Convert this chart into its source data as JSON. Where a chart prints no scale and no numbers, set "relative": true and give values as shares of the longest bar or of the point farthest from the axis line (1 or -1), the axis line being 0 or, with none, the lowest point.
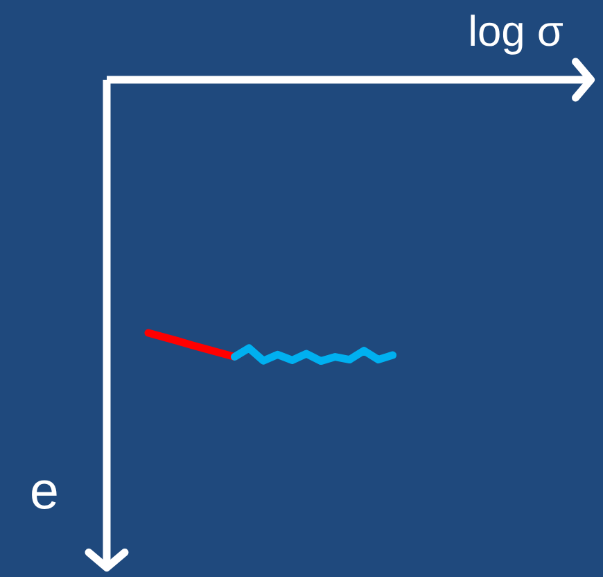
{
  "chart_data": {
    "type": "line",
    "xlabel": "log σ",
    "ylabel": "e",
    "relative": true,
    "categories": [
      null,
      null,
      null,
      null,
      null,
      null,
      null,
      null,
      null,
      null,
      null,
      null,
      null,
      null,
      null,
      null,
      null,
      null
    ],
    "series": [
      {
        "color": "#ff0000",
        "values": [
          -0.9,
          -0.914,
          -0.928,
          -0.943,
          -0.957,
          -0.971,
          -0.985,
          null,
          null,
          null,
          null,
          null,
          null,
          null,
          null,
          null,
          null,
          null
        ]
      },
      {
        "color": "#00b0f0",
        "values": [
          null,
          null,
          null,
          null,
          null,
          null,
          -0.985,
          -0.954,
          -0.999,
          -0.977,
          -0.997,
          -0.974,
          -1,
          -0.985,
          -0.995,
          -0.963,
          -0.995,
          -0.979
        ]
      }
    ]
  }
}
